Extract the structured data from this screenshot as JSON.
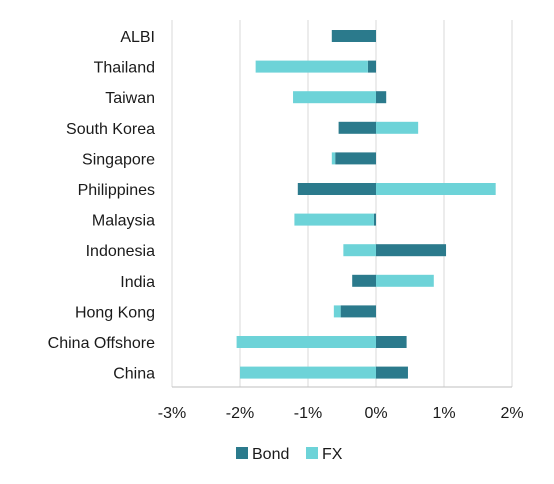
{
  "chart_data": {
    "type": "bar",
    "orientation": "horizontal",
    "stacked": true,
    "categories": [
      "ALBI",
      "Thailand",
      "Taiwan",
      "South Korea",
      "Singapore",
      "Philippines",
      "Malaysia",
      "Indonesia",
      "India",
      "Hong Kong",
      "China Offshore",
      "China"
    ],
    "series": [
      {
        "name": "Bond",
        "color": "#2b7a8c",
        "values": [
          -0.65,
          -0.12,
          0.15,
          -0.55,
          -0.6,
          -1.15,
          -0.03,
          1.03,
          -0.35,
          -0.52,
          0.45,
          0.47
        ]
      },
      {
        "name": "FX",
        "color": "#6dd3d8",
        "values": [
          0.0,
          -1.65,
          -1.22,
          0.62,
          -0.05,
          1.76,
          -1.17,
          -0.48,
          0.85,
          -0.1,
          -2.05,
          -2.0
        ]
      }
    ],
    "xlim": [
      -3,
      2
    ],
    "xticks": [
      "-3%",
      "-2%",
      "-1%",
      "0%",
      "1%",
      "2%"
    ],
    "grid": "vertical",
    "legend": "bottom-center"
  }
}
